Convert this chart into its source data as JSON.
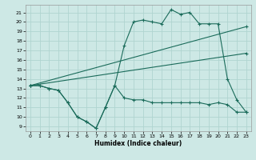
{
  "xlabel": "Humidex (Indice chaleur)",
  "bg_color": "#cde8e5",
  "grid_color": "#b0d4d0",
  "line_color": "#1a6b5a",
  "xlim": [
    -0.5,
    23.5
  ],
  "ylim": [
    8.5,
    21.8
  ],
  "xticks": [
    0,
    1,
    2,
    3,
    4,
    5,
    6,
    7,
    8,
    9,
    10,
    11,
    12,
    13,
    14,
    15,
    16,
    17,
    18,
    19,
    20,
    21,
    22,
    23
  ],
  "yticks": [
    9,
    10,
    11,
    12,
    13,
    14,
    15,
    16,
    17,
    18,
    19,
    20,
    21
  ],
  "line1_x": [
    0,
    1,
    2,
    3,
    4,
    5,
    6,
    7,
    8,
    9,
    10,
    11,
    12,
    13,
    14,
    15,
    16,
    17,
    18,
    19,
    20,
    21,
    22,
    23
  ],
  "line1_y": [
    13.3,
    13.3,
    13.0,
    12.8,
    11.5,
    10.0,
    9.5,
    8.8,
    11.0,
    13.3,
    12.0,
    11.8,
    11.8,
    11.5,
    11.5,
    11.5,
    11.5,
    11.5,
    11.5,
    11.3,
    11.5,
    11.3,
    10.5,
    10.5
  ],
  "line2_x": [
    0,
    1,
    2,
    3,
    4,
    5,
    6,
    7,
    8,
    9,
    10,
    11,
    12,
    13,
    14,
    15,
    16,
    17,
    18,
    19,
    20,
    21,
    22,
    23
  ],
  "line2_y": [
    13.3,
    13.3,
    13.0,
    12.8,
    11.5,
    10.0,
    9.5,
    8.8,
    11.0,
    13.3,
    17.5,
    20.0,
    20.2,
    20.0,
    19.8,
    21.3,
    20.8,
    21.0,
    19.8,
    19.8,
    19.8,
    14.0,
    11.8,
    10.5
  ],
  "line3_x": [
    0,
    23
  ],
  "line3_y": [
    13.3,
    19.5
  ],
  "line4_x": [
    0,
    23
  ],
  "line4_y": [
    13.3,
    16.7
  ]
}
